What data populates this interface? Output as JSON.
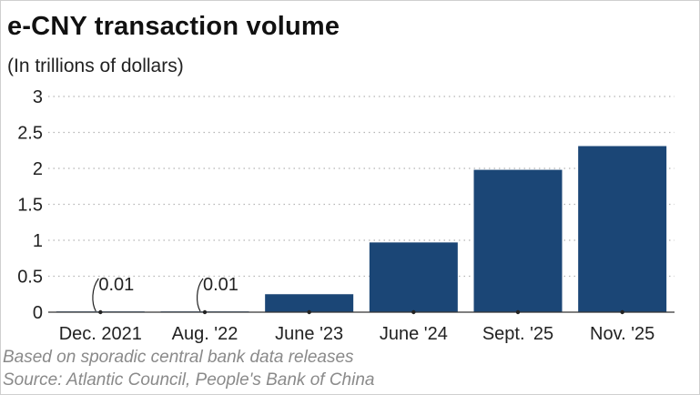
{
  "chart_data": {
    "type": "bar",
    "title": "e-CNY transaction volume",
    "subtitle": "(In trillions of dollars)",
    "categories": [
      "Dec. 2021",
      "Aug. '22",
      "June '23",
      "June '24",
      "Sept. '25",
      "Nov. '25"
    ],
    "values": [
      0.01,
      0.01,
      0.25,
      0.97,
      1.98,
      2.31
    ],
    "data_labels": [
      "0.01",
      "0.01",
      "",
      "",
      "",
      ""
    ],
    "ylim": [
      0,
      3
    ],
    "yticks": [
      "0",
      "0.5",
      "1",
      "1.5",
      "2",
      "2.5",
      "3"
    ],
    "grid": "dotted horizontal",
    "bar_color": "#1b4676",
    "xlabel": "",
    "ylabel": ""
  },
  "footnote": "Based on sporadic central bank data releases",
  "source": "Source: Atlantic Council, People's Bank of China"
}
